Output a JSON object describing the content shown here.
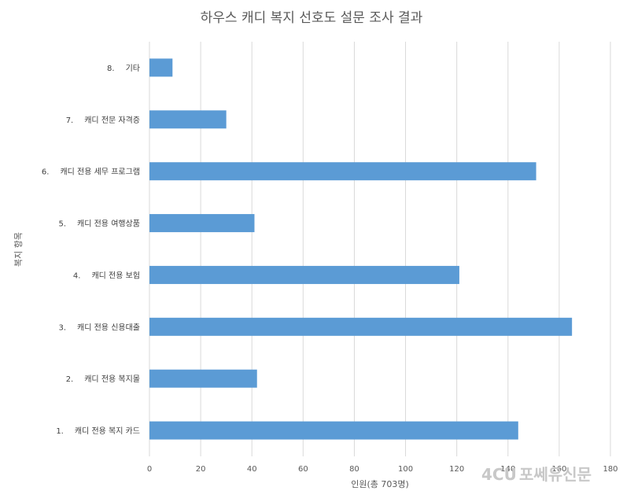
{
  "chart_data": {
    "type": "bar",
    "orientation": "horizontal",
    "title": "하우스 캐디 복지 선호도 설문 조사 결과",
    "xlabel": "인원(총 703명)",
    "ylabel": "복지 항목",
    "xlim": [
      0,
      180
    ],
    "xticks": [
      0,
      20,
      40,
      60,
      80,
      100,
      120,
      140,
      160,
      180
    ],
    "grid": "vertical",
    "categories": [
      {
        "num": "8.",
        "label": "기타"
      },
      {
        "num": "7.",
        "label": "캐디 전문 자격증"
      },
      {
        "num": "6.",
        "label": "캐디 전용 세무 프로그램"
      },
      {
        "num": "5.",
        "label": "캐디 전용 여행상품"
      },
      {
        "num": "4.",
        "label": "캐디 전용 보험"
      },
      {
        "num": "3.",
        "label": "캐디 전용 신용대출"
      },
      {
        "num": "2.",
        "label": "캐디 전용 복지몰"
      },
      {
        "num": "1.",
        "label": "캐디 전용 복지 카드"
      }
    ],
    "values": [
      9,
      30,
      151,
      41,
      121,
      165,
      42,
      144
    ],
    "bar_color": "#5b9bd5"
  },
  "watermark": {
    "text": "포쎄유신문",
    "logo_text": "4CU"
  }
}
